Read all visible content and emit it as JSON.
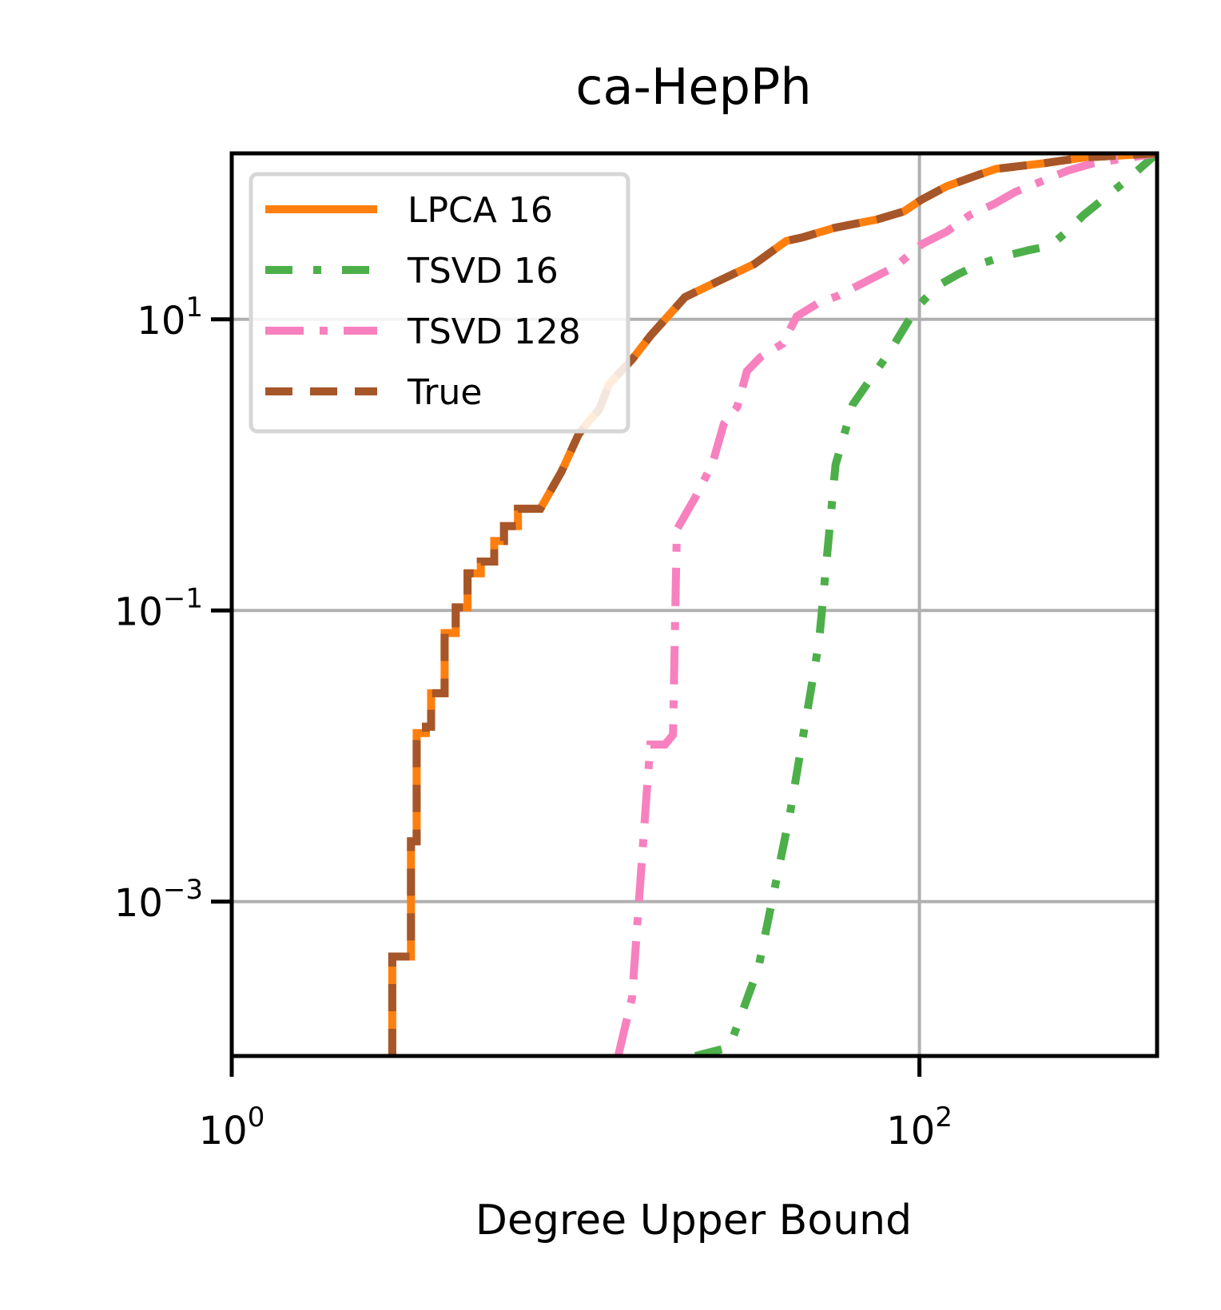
{
  "chart_data": {
    "type": "line",
    "title": "ca-HepPh",
    "xlabel": "Degree Upper Bound",
    "ylabel": "",
    "x_scale": "log",
    "y_scale": "log",
    "xlim": [
      1,
      491
    ],
    "ylim": [
      8.71e-05,
      138
    ],
    "grid": true,
    "legend_position": "top-left",
    "x_ticks": [
      {
        "value": 1,
        "base": "10",
        "exp": "0"
      },
      {
        "value": 100,
        "base": "10",
        "exp": "2"
      }
    ],
    "y_ticks": [
      {
        "value": 10,
        "base": "10",
        "exp": "1"
      },
      {
        "value": 0.1,
        "base": "10",
        "exp": "−1"
      },
      {
        "value": 0.001,
        "base": "10",
        "exp": "−3"
      }
    ],
    "series": [
      {
        "name": "LPCA 16",
        "color": "#ff7f0e",
        "dash": "solid",
        "points": [
          [
            2.93,
            8.71e-05
          ],
          [
            2.93,
            0.00042
          ],
          [
            3.32,
            0.00042
          ],
          [
            3.32,
            0.0026
          ],
          [
            3.32,
            0.0026
          ],
          [
            3.45,
            0.0026
          ],
          [
            3.45,
            0.0144
          ],
          [
            3.67,
            0.0144
          ],
          [
            3.67,
            0.0159
          ],
          [
            3.8,
            0.0159
          ],
          [
            3.8,
            0.027
          ],
          [
            4.16,
            0.027
          ],
          [
            4.16,
            0.07
          ],
          [
            4.48,
            0.07
          ],
          [
            4.48,
            0.105
          ],
          [
            4.85,
            0.105
          ],
          [
            4.85,
            0.18
          ],
          [
            5.3,
            0.18
          ],
          [
            5.3,
            0.217
          ],
          [
            5.8,
            0.217
          ],
          [
            5.8,
            0.3
          ],
          [
            6.19,
            0.3
          ],
          [
            6.19,
            0.38
          ],
          [
            6.8,
            0.38
          ],
          [
            6.8,
            0.5
          ],
          [
            7.9,
            0.5
          ],
          [
            9.1,
            0.9
          ],
          [
            10.2,
            1.62
          ],
          [
            10.9,
            1.98
          ],
          [
            11.7,
            2.4
          ],
          [
            12.5,
            3.55
          ],
          [
            13.3,
            4.2
          ],
          [
            14.6,
            5.3
          ],
          [
            16.5,
            7.7
          ],
          [
            20.8,
            14.2
          ],
          [
            25.0,
            17.5
          ],
          [
            33.1,
            24.0
          ],
          [
            41.0,
            34.5
          ],
          [
            45.6,
            36.5
          ],
          [
            56.6,
            42.5
          ],
          [
            75.2,
            48.5
          ],
          [
            90.0,
            55.0
          ],
          [
            101.0,
            66.0
          ],
          [
            120.0,
            82.0
          ],
          [
            148.0,
            98.0
          ],
          [
            167.0,
            108.0
          ],
          [
            230.0,
            118.0
          ],
          [
            260.0,
            123.0
          ],
          [
            300.0,
            129.0
          ],
          [
            491.0,
            138.0
          ]
        ]
      },
      {
        "name": "TSVD 16",
        "color": "#4daf4a",
        "dash": "dotted-dash",
        "points": [
          [
            22.3,
            8.71e-05
          ],
          [
            28.0,
            0.0001
          ],
          [
            34.0,
            0.00035
          ],
          [
            42.0,
            0.004
          ],
          [
            51.0,
            0.06
          ],
          [
            57.0,
            1.0
          ],
          [
            64.0,
            2.6
          ],
          [
            71.0,
            3.7
          ],
          [
            82.0,
            6.0
          ],
          [
            98.0,
            12.0
          ],
          [
            113.0,
            17.0
          ],
          [
            130.0,
            20.5
          ],
          [
            150.0,
            24.0
          ],
          [
            175.0,
            27.0
          ],
          [
            210.0,
            30.0
          ],
          [
            240.0,
            32.0
          ],
          [
            265.0,
            39.0
          ],
          [
            300.0,
            52.0
          ],
          [
            400.0,
            90.0
          ],
          [
            491.0,
            138.0
          ]
        ]
      },
      {
        "name": "TSVD 128",
        "color": "#f781bf",
        "dash": "dash-dot",
        "points": [
          [
            13.3,
            8.71e-05
          ],
          [
            14.6,
            0.00022
          ],
          [
            16.1,
            0.0056
          ],
          [
            16.5,
            0.012
          ],
          [
            18.2,
            0.012
          ],
          [
            19.2,
            0.014
          ],
          [
            19.7,
            0.36
          ],
          [
            22.3,
            0.6
          ],
          [
            25.0,
            1.02
          ],
          [
            27.0,
            1.92
          ],
          [
            29.5,
            2.5
          ],
          [
            31.5,
            4.4
          ],
          [
            34.5,
            5.5
          ],
          [
            40.0,
            6.8
          ],
          [
            44.0,
            10.5
          ],
          [
            51.0,
            13.0
          ],
          [
            58.0,
            14.5
          ],
          [
            66.0,
            17.0
          ],
          [
            85.0,
            23.0
          ],
          [
            102.0,
            33.0
          ],
          [
            120.0,
            40.0
          ],
          [
            140.0,
            52.0
          ],
          [
            165.0,
            62.0
          ],
          [
            190.0,
            75.0
          ],
          [
            230.0,
            90.0
          ],
          [
            270.0,
            105.0
          ],
          [
            320.0,
            118.0
          ],
          [
            400.0,
            128.0
          ],
          [
            491.0,
            138.0
          ]
        ]
      },
      {
        "name": "True",
        "color": "#a65628",
        "dash": "dashed",
        "points": [
          [
            2.93,
            8.71e-05
          ],
          [
            2.93,
            0.00042
          ],
          [
            3.32,
            0.00042
          ],
          [
            3.32,
            0.0026
          ],
          [
            3.32,
            0.0026
          ],
          [
            3.45,
            0.0026
          ],
          [
            3.45,
            0.0144
          ],
          [
            3.67,
            0.0144
          ],
          [
            3.67,
            0.0159
          ],
          [
            3.8,
            0.0159
          ],
          [
            3.8,
            0.027
          ],
          [
            4.16,
            0.027
          ],
          [
            4.16,
            0.07
          ],
          [
            4.48,
            0.07
          ],
          [
            4.48,
            0.105
          ],
          [
            4.85,
            0.105
          ],
          [
            4.85,
            0.18
          ],
          [
            5.3,
            0.18
          ],
          [
            5.3,
            0.217
          ],
          [
            5.8,
            0.217
          ],
          [
            5.8,
            0.3
          ],
          [
            6.19,
            0.3
          ],
          [
            6.19,
            0.38
          ],
          [
            6.8,
            0.38
          ],
          [
            6.8,
            0.5
          ],
          [
            7.9,
            0.5
          ],
          [
            9.1,
            0.9
          ],
          [
            10.2,
            1.62
          ],
          [
            10.9,
            1.98
          ],
          [
            11.7,
            2.4
          ],
          [
            12.5,
            3.55
          ],
          [
            13.3,
            4.2
          ],
          [
            14.6,
            5.3
          ],
          [
            16.5,
            7.7
          ],
          [
            20.8,
            14.2
          ],
          [
            25.0,
            17.5
          ],
          [
            33.1,
            24.0
          ],
          [
            41.0,
            34.5
          ],
          [
            45.6,
            36.5
          ],
          [
            56.6,
            42.5
          ],
          [
            75.2,
            48.5
          ],
          [
            90.0,
            55.0
          ],
          [
            101.0,
            66.0
          ],
          [
            120.0,
            82.0
          ],
          [
            148.0,
            98.0
          ],
          [
            167.0,
            108.0
          ],
          [
            230.0,
            118.0
          ],
          [
            260.0,
            123.0
          ],
          [
            300.0,
            129.0
          ],
          [
            491.0,
            138.0
          ]
        ]
      }
    ]
  }
}
